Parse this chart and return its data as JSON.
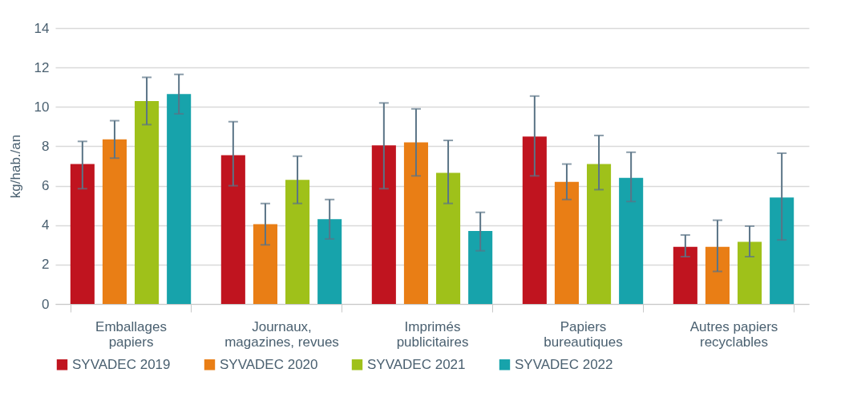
{
  "chart_data": {
    "type": "bar",
    "ylabel": "kg/hab./an",
    "categories": [
      "Emballages\npapiers",
      "Journaux,\nmagazines, revues",
      "Imprimés\npublicitaires",
      "Papiers\nbureautiques",
      "Autres papiers\nrecyclables"
    ],
    "series": [
      {
        "name": "SYVADEC 2019",
        "color": "#c0141f",
        "values": [
          7.1,
          7.55,
          8.05,
          8.5,
          2.9
        ],
        "errors": [
          [
            5.85,
            8.25
          ],
          [
            6.0,
            9.25
          ],
          [
            5.85,
            10.2
          ],
          [
            6.5,
            10.55
          ],
          [
            2.4,
            3.5
          ]
        ]
      },
      {
        "name": "SYVADEC 2020",
        "color": "#e97e15",
        "values": [
          8.35,
          4.05,
          8.2,
          6.2,
          2.9
        ],
        "errors": [
          [
            7.4,
            9.3
          ],
          [
            3.0,
            5.1
          ],
          [
            6.5,
            9.9
          ],
          [
            5.3,
            7.1
          ],
          [
            1.65,
            4.25
          ]
        ]
      },
      {
        "name": "SYVADEC 2021",
        "color": "#9fc11a",
        "values": [
          10.3,
          6.3,
          6.65,
          7.1,
          3.15
        ],
        "errors": [
          [
            9.1,
            11.5
          ],
          [
            5.1,
            7.5
          ],
          [
            5.1,
            8.3
          ],
          [
            5.8,
            8.55
          ],
          [
            2.4,
            3.95
          ]
        ]
      },
      {
        "name": "SYVADEC 2022",
        "color": "#17a3ab",
        "values": [
          10.65,
          4.3,
          3.7,
          6.4,
          5.4
        ],
        "errors": [
          [
            9.65,
            11.65
          ],
          [
            3.3,
            5.3
          ],
          [
            2.7,
            4.65
          ],
          [
            5.2,
            7.7
          ],
          [
            3.25,
            7.65
          ]
        ]
      }
    ],
    "ylim": [
      0,
      14
    ],
    "yticks": [
      0,
      2,
      4,
      6,
      8,
      10,
      12,
      14
    ],
    "grid": "y",
    "legend": "bottom"
  }
}
